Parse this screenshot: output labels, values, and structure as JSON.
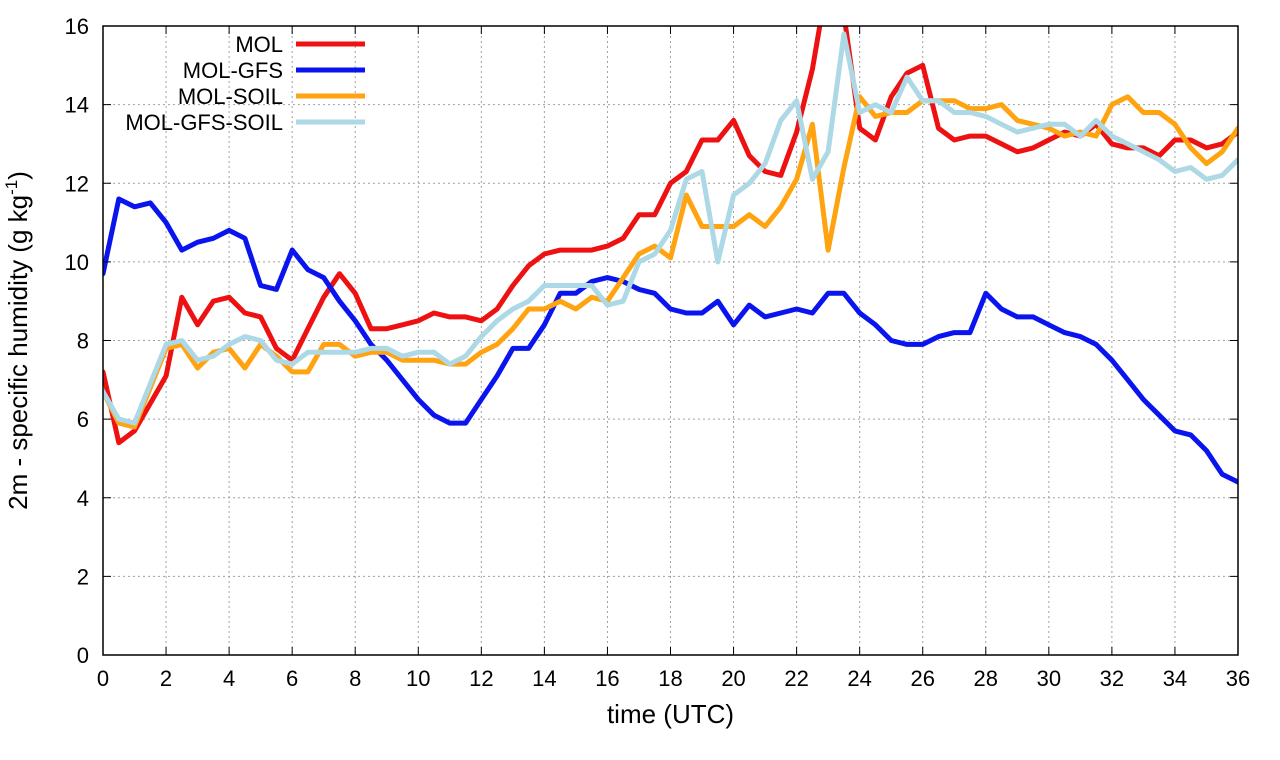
{
  "chart_data": {
    "type": "line",
    "xlabel": "time (UTC)",
    "ylabel": "2m - specific humidity (g kg",
    "ylabel_sup": "-1",
    "ylabel_end": ")",
    "xlim": [
      0,
      36
    ],
    "ylim": [
      0,
      16
    ],
    "xticks": [
      0,
      2,
      4,
      6,
      8,
      10,
      12,
      14,
      16,
      18,
      20,
      22,
      24,
      26,
      28,
      30,
      32,
      34,
      36
    ],
    "yticks": [
      0,
      2,
      4,
      6,
      8,
      10,
      12,
      14,
      16
    ],
    "grid": true,
    "legend_position": "top-left",
    "series": [
      {
        "name": "MOL",
        "color": "#ee1111",
        "points": [
          [
            0,
            7.2
          ],
          [
            0.5,
            5.4
          ],
          [
            1,
            5.7
          ],
          [
            1.5,
            6.4
          ],
          [
            2,
            7.1
          ],
          [
            2.5,
            9.1
          ],
          [
            3,
            8.4
          ],
          [
            3.5,
            9.0
          ],
          [
            4,
            9.1
          ],
          [
            4.5,
            8.7
          ],
          [
            5,
            8.6
          ],
          [
            5.5,
            7.8
          ],
          [
            6,
            7.5
          ],
          [
            6.5,
            8.3
          ],
          [
            7,
            9.1
          ],
          [
            7.5,
            9.7
          ],
          [
            8,
            9.2
          ],
          [
            8.5,
            8.3
          ],
          [
            9,
            8.3
          ],
          [
            9.5,
            8.4
          ],
          [
            10,
            8.5
          ],
          [
            10.5,
            8.7
          ],
          [
            11,
            8.6
          ],
          [
            11.5,
            8.6
          ],
          [
            12,
            8.5
          ],
          [
            12.5,
            8.8
          ],
          [
            13,
            9.4
          ],
          [
            13.5,
            9.9
          ],
          [
            14,
            10.2
          ],
          [
            14.5,
            10.3
          ],
          [
            15,
            10.3
          ],
          [
            15.5,
            10.3
          ],
          [
            16,
            10.4
          ],
          [
            16.5,
            10.6
          ],
          [
            17,
            11.2
          ],
          [
            17.5,
            11.2
          ],
          [
            18,
            12.0
          ],
          [
            18.5,
            12.3
          ],
          [
            19,
            13.1
          ],
          [
            19.5,
            13.1
          ],
          [
            20,
            13.6
          ],
          [
            20.5,
            12.7
          ],
          [
            21,
            12.3
          ],
          [
            21.5,
            12.2
          ],
          [
            22,
            13.3
          ],
          [
            22.5,
            14.9
          ],
          [
            22.8,
            16.3
          ],
          [
            23.5,
            16.3
          ],
          [
            24,
            13.4
          ],
          [
            24.5,
            13.1
          ],
          [
            25,
            14.2
          ],
          [
            25.5,
            14.8
          ],
          [
            26,
            15.0
          ],
          [
            26.5,
            13.4
          ],
          [
            27,
            13.1
          ],
          [
            27.5,
            13.2
          ],
          [
            28,
            13.2
          ],
          [
            28.5,
            13.0
          ],
          [
            29,
            12.8
          ],
          [
            29.5,
            12.9
          ],
          [
            30,
            13.1
          ],
          [
            30.5,
            13.3
          ],
          [
            31,
            13.2
          ],
          [
            31.5,
            13.5
          ],
          [
            32,
            13.0
          ],
          [
            32.5,
            12.9
          ],
          [
            33,
            12.9
          ],
          [
            33.5,
            12.7
          ],
          [
            34,
            13.1
          ],
          [
            34.5,
            13.1
          ],
          [
            35,
            12.9
          ],
          [
            35.5,
            13.0
          ],
          [
            36,
            13.3
          ]
        ]
      },
      {
        "name": "MOL-GFS",
        "color": "#0a14ee",
        "points": [
          [
            0,
            9.7
          ],
          [
            0.5,
            11.6
          ],
          [
            1,
            11.4
          ],
          [
            1.5,
            11.5
          ],
          [
            2,
            11.0
          ],
          [
            2.5,
            10.3
          ],
          [
            3,
            10.5
          ],
          [
            3.5,
            10.6
          ],
          [
            4,
            10.8
          ],
          [
            4.5,
            10.6
          ],
          [
            5,
            9.4
          ],
          [
            5.5,
            9.3
          ],
          [
            6,
            10.3
          ],
          [
            6.5,
            9.8
          ],
          [
            7,
            9.6
          ],
          [
            7.5,
            9.0
          ],
          [
            8,
            8.5
          ],
          [
            8.5,
            7.9
          ],
          [
            9,
            7.5
          ],
          [
            9.5,
            7.0
          ],
          [
            10,
            6.5
          ],
          [
            10.5,
            6.1
          ],
          [
            11,
            5.9
          ],
          [
            11.5,
            5.9
          ],
          [
            12,
            6.5
          ],
          [
            12.5,
            7.1
          ],
          [
            13,
            7.8
          ],
          [
            13.5,
            7.8
          ],
          [
            14,
            8.4
          ],
          [
            14.5,
            9.2
          ],
          [
            15,
            9.2
          ],
          [
            15.5,
            9.5
          ],
          [
            16,
            9.6
          ],
          [
            16.5,
            9.5
          ],
          [
            17,
            9.3
          ],
          [
            17.5,
            9.2
          ],
          [
            18,
            8.8
          ],
          [
            18.5,
            8.7
          ],
          [
            19,
            8.7
          ],
          [
            19.5,
            9.0
          ],
          [
            20,
            8.4
          ],
          [
            20.5,
            8.9
          ],
          [
            21,
            8.6
          ],
          [
            21.5,
            8.7
          ],
          [
            22,
            8.8
          ],
          [
            22.5,
            8.7
          ],
          [
            23,
            9.2
          ],
          [
            23.5,
            9.2
          ],
          [
            24,
            8.7
          ],
          [
            24.5,
            8.4
          ],
          [
            25,
            8.0
          ],
          [
            25.5,
            7.9
          ],
          [
            26,
            7.9
          ],
          [
            26.5,
            8.1
          ],
          [
            27,
            8.2
          ],
          [
            27.5,
            8.2
          ],
          [
            28,
            9.2
          ],
          [
            28.5,
            8.8
          ],
          [
            29,
            8.6
          ],
          [
            29.5,
            8.6
          ],
          [
            30,
            8.4
          ],
          [
            30.5,
            8.2
          ],
          [
            31,
            8.1
          ],
          [
            31.5,
            7.9
          ],
          [
            32,
            7.5
          ],
          [
            32.5,
            7.0
          ],
          [
            33,
            6.5
          ],
          [
            33.5,
            6.1
          ],
          [
            34,
            5.7
          ],
          [
            34.5,
            5.6
          ],
          [
            35,
            5.2
          ],
          [
            35.5,
            4.6
          ],
          [
            36,
            4.4
          ]
        ]
      },
      {
        "name": "MOL-SOIL",
        "color": "#ffa311",
        "points": [
          [
            0,
            6.7
          ],
          [
            0.5,
            5.9
          ],
          [
            1,
            5.8
          ],
          [
            1.5,
            6.8
          ],
          [
            2,
            7.8
          ],
          [
            2.5,
            7.9
          ],
          [
            3,
            7.3
          ],
          [
            3.5,
            7.7
          ],
          [
            4,
            7.8
          ],
          [
            4.5,
            7.3
          ],
          [
            5,
            7.9
          ],
          [
            5.5,
            7.6
          ],
          [
            6,
            7.2
          ],
          [
            6.5,
            7.2
          ],
          [
            7,
            7.9
          ],
          [
            7.5,
            7.9
          ],
          [
            8,
            7.6
          ],
          [
            8.5,
            7.7
          ],
          [
            9,
            7.7
          ],
          [
            9.5,
            7.5
          ],
          [
            10,
            7.5
          ],
          [
            10.5,
            7.5
          ],
          [
            11,
            7.4
          ],
          [
            11.5,
            7.4
          ],
          [
            12,
            7.7
          ],
          [
            12.5,
            7.9
          ],
          [
            13,
            8.3
          ],
          [
            13.5,
            8.8
          ],
          [
            14,
            8.8
          ],
          [
            14.5,
            9.0
          ],
          [
            15,
            8.8
          ],
          [
            15.5,
            9.1
          ],
          [
            16,
            9.0
          ],
          [
            16.5,
            9.6
          ],
          [
            17,
            10.2
          ],
          [
            17.5,
            10.4
          ],
          [
            18,
            10.1
          ],
          [
            18.5,
            11.7
          ],
          [
            19,
            10.9
          ],
          [
            19.5,
            10.9
          ],
          [
            20,
            10.9
          ],
          [
            20.5,
            11.2
          ],
          [
            21,
            10.9
          ],
          [
            21.5,
            11.4
          ],
          [
            22,
            12.1
          ],
          [
            22.5,
            13.5
          ],
          [
            23,
            10.3
          ],
          [
            23.5,
            12.4
          ],
          [
            24,
            14.2
          ],
          [
            24.5,
            13.7
          ],
          [
            25,
            13.8
          ],
          [
            25.5,
            13.8
          ],
          [
            26,
            14.1
          ],
          [
            26.5,
            14.1
          ],
          [
            27,
            14.1
          ],
          [
            27.5,
            13.9
          ],
          [
            28,
            13.9
          ],
          [
            28.5,
            14.0
          ],
          [
            29,
            13.6
          ],
          [
            29.5,
            13.5
          ],
          [
            30,
            13.4
          ],
          [
            30.5,
            13.2
          ],
          [
            31,
            13.3
          ],
          [
            31.5,
            13.2
          ],
          [
            32,
            14.0
          ],
          [
            32.5,
            14.2
          ],
          [
            33,
            13.8
          ],
          [
            33.5,
            13.8
          ],
          [
            34,
            13.5
          ],
          [
            34.5,
            12.9
          ],
          [
            35,
            12.5
          ],
          [
            35.5,
            12.8
          ],
          [
            36,
            13.4
          ]
        ]
      },
      {
        "name": "MOL-GFS-SOIL",
        "color": "#add8e6",
        "points": [
          [
            0,
            6.7
          ],
          [
            0.5,
            6.0
          ],
          [
            1,
            5.9
          ],
          [
            1.5,
            6.9
          ],
          [
            2,
            7.9
          ],
          [
            2.5,
            8.0
          ],
          [
            3,
            7.5
          ],
          [
            3.5,
            7.6
          ],
          [
            4,
            7.9
          ],
          [
            4.5,
            8.1
          ],
          [
            5,
            8.0
          ],
          [
            5.5,
            7.5
          ],
          [
            6,
            7.4
          ],
          [
            6.5,
            7.7
          ],
          [
            7,
            7.7
          ],
          [
            7.5,
            7.7
          ],
          [
            8,
            7.7
          ],
          [
            8.5,
            7.8
          ],
          [
            9,
            7.8
          ],
          [
            9.5,
            7.6
          ],
          [
            10,
            7.7
          ],
          [
            10.5,
            7.7
          ],
          [
            11,
            7.4
          ],
          [
            11.5,
            7.6
          ],
          [
            12,
            8.1
          ],
          [
            12.5,
            8.5
          ],
          [
            13,
            8.8
          ],
          [
            13.5,
            9.0
          ],
          [
            14,
            9.4
          ],
          [
            14.5,
            9.4
          ],
          [
            15,
            9.4
          ],
          [
            15.5,
            9.4
          ],
          [
            16,
            8.9
          ],
          [
            16.5,
            9.0
          ],
          [
            17,
            10.0
          ],
          [
            17.5,
            10.2
          ],
          [
            18,
            10.8
          ],
          [
            18.5,
            12.1
          ],
          [
            19,
            12.3
          ],
          [
            19.5,
            10.0
          ],
          [
            20,
            11.7
          ],
          [
            20.5,
            12.0
          ],
          [
            21,
            12.5
          ],
          [
            21.5,
            13.6
          ],
          [
            22,
            14.1
          ],
          [
            22.5,
            12.1
          ],
          [
            23,
            12.8
          ],
          [
            23.5,
            15.8
          ],
          [
            24,
            13.8
          ],
          [
            24.5,
            14.0
          ],
          [
            25,
            13.8
          ],
          [
            25.5,
            14.7
          ],
          [
            26,
            14.1
          ],
          [
            26.5,
            14.1
          ],
          [
            27,
            13.8
          ],
          [
            27.5,
            13.8
          ],
          [
            28,
            13.7
          ],
          [
            28.5,
            13.5
          ],
          [
            29,
            13.3
          ],
          [
            29.5,
            13.4
          ],
          [
            30,
            13.5
          ],
          [
            30.5,
            13.5
          ],
          [
            31,
            13.2
          ],
          [
            31.5,
            13.6
          ],
          [
            32,
            13.2
          ],
          [
            32.5,
            13.0
          ],
          [
            33,
            12.8
          ],
          [
            33.5,
            12.6
          ],
          [
            34,
            12.3
          ],
          [
            34.5,
            12.4
          ],
          [
            35,
            12.1
          ],
          [
            35.5,
            12.2
          ],
          [
            36,
            12.6
          ]
        ]
      }
    ]
  }
}
